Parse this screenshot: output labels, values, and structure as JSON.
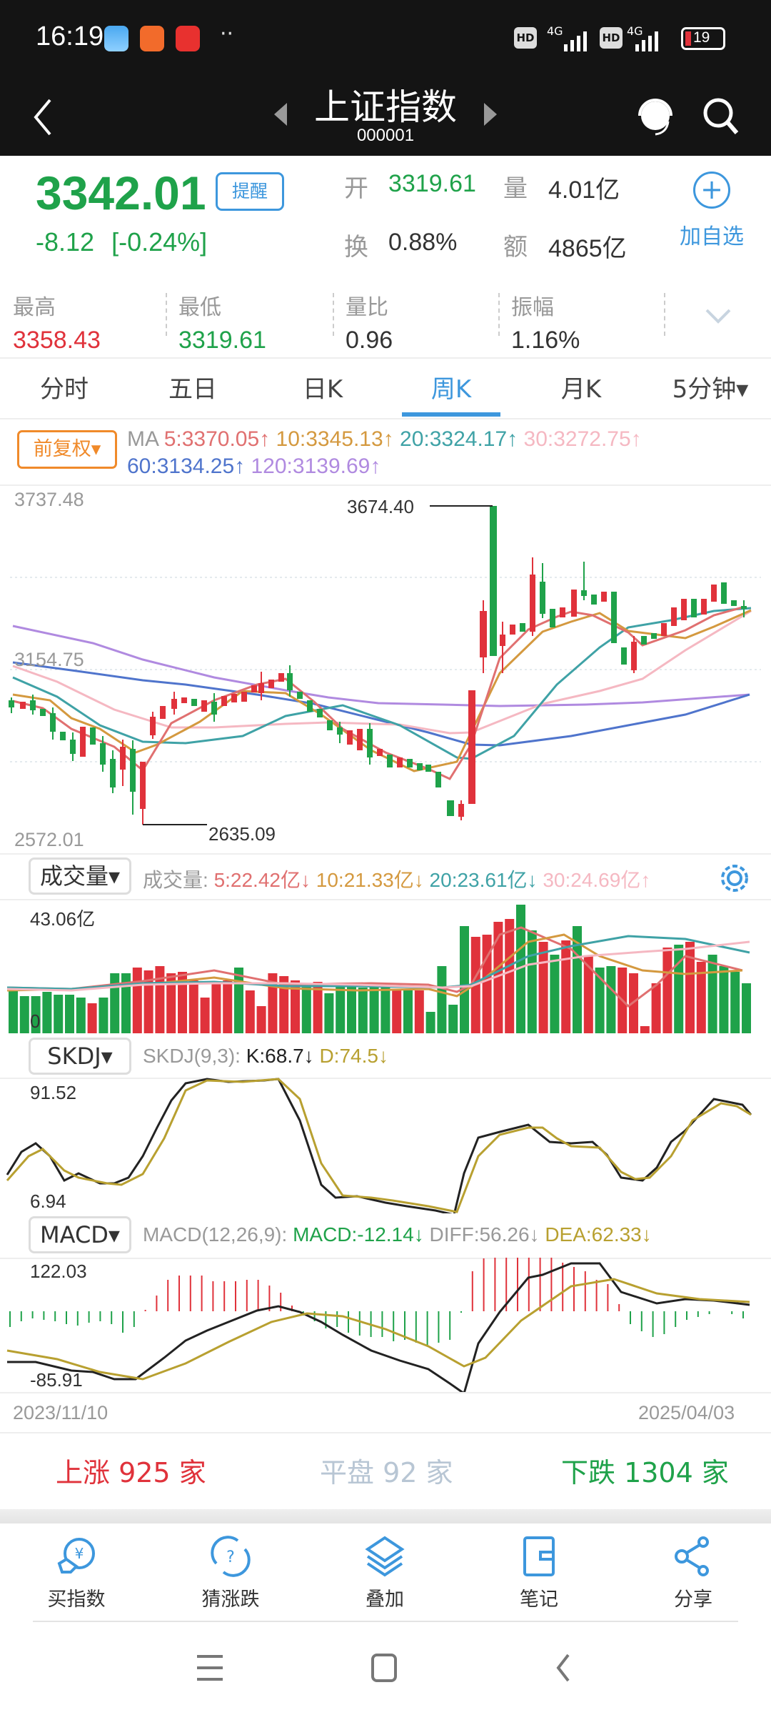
{
  "status_bar": {
    "time": "16:19",
    "battery": "19",
    "network1": "4G",
    "network2": "4G",
    "hd_label": "HD"
  },
  "header": {
    "title": "上证指数",
    "code": "000001"
  },
  "quote": {
    "price": "3342.01",
    "change": "-8.12",
    "change_pct": "[-0.24%]",
    "remind_label": "提醒",
    "open_label": "开",
    "open_value": "3319.61",
    "volume_label": "量",
    "volume_value": "4.01亿",
    "turnover_label": "换",
    "turnover_value": "0.88%",
    "amount_label": "额",
    "amount_value": "4865亿",
    "add_watch_label": "加自选"
  },
  "stats": [
    {
      "label": "最高",
      "value": "3358.43",
      "color": "red"
    },
    {
      "label": "最低",
      "value": "3319.61",
      "color": "green"
    },
    {
      "label": "量比",
      "value": "0.96",
      "color": "dark"
    },
    {
      "label": "振幅",
      "value": "1.16%",
      "color": "dark"
    }
  ],
  "tabs": [
    {
      "label": "分时"
    },
    {
      "label": "五日"
    },
    {
      "label": "日K"
    },
    {
      "label": "周K",
      "active": true
    },
    {
      "label": "月K"
    },
    {
      "label": "5分钟▾"
    }
  ],
  "ma_legend": {
    "adjust_label": "前复权",
    "prefix": "MA",
    "ma5": "5:3370.05↑",
    "ma10": "10:3345.13↑",
    "ma20": "20:3324.17↑",
    "ma30": "30:3272.75↑",
    "ma60": "60:3134.25↑",
    "ma120": "120:3139.69↑"
  },
  "main_chart": {
    "y_top": "3737.48",
    "y_mid": "3154.75",
    "y_bottom": "2572.01",
    "high_marker": "3674.40",
    "low_marker": "2635.09"
  },
  "volume": {
    "button": "成交量",
    "prefix": "成交量:",
    "ma5": "5:22.42亿↓",
    "ma10": "10:21.33亿↓",
    "ma20": "20:23.61亿↓",
    "ma30": "30:24.69亿↑",
    "y_top": "43.06亿",
    "y_bottom": "0"
  },
  "skdj": {
    "button": "SKDJ",
    "prefix": "SKDJ(9,3):",
    "k": "K:68.7↓",
    "d": "D:74.5↓",
    "y_top": "91.52",
    "y_bottom": "6.94"
  },
  "macd": {
    "button": "MACD",
    "prefix": "MACD(12,26,9):",
    "macd": "MACD:-12.14↓",
    "diff": "DIFF:56.26↓",
    "dea": "DEA:62.33↓",
    "y_top": "122.03",
    "y_bottom": "-85.91"
  },
  "dates": {
    "start": "2023/11/10",
    "end": "2025/04/03"
  },
  "breadth": {
    "up": "上涨 925 家",
    "flat": "平盘 92 家",
    "down": "下跌 1304 家"
  },
  "toolbar": [
    {
      "label": "买指数",
      "icon": "buy-index-icon"
    },
    {
      "label": "猜涨跌",
      "icon": "guess-icon"
    },
    {
      "label": "叠加",
      "icon": "layers-icon"
    },
    {
      "label": "笔记",
      "icon": "notebook-icon"
    },
    {
      "label": "分享",
      "icon": "share-icon"
    }
  ],
  "colors": {
    "up": "#e0323b",
    "down": "#1fa24a",
    "accent": "#3d97dd",
    "ma5": "#e07070",
    "ma10": "#d4993f",
    "ma20": "#3fa2a6",
    "ma30": "#f5b8c2",
    "ma60": "#4f74cc",
    "ma120": "#b08ae0",
    "k_line": "#222222",
    "d_line": "#b8a030"
  },
  "chart_data": {
    "type": "candlestick",
    "title": "上证指数 周K",
    "x_range": [
      "2023/11/10",
      "2025/04/03"
    ],
    "ylim": [
      2572.01,
      3737.48
    ],
    "annotations": [
      {
        "label": "3674.40",
        "type": "high"
      },
      {
        "label": "2635.09",
        "type": "low"
      }
    ],
    "moving_averages": {
      "MA5": 3370.05,
      "MA10": 3345.13,
      "MA20": 3324.17,
      "MA30": 3272.75,
      "MA60": 3134.25,
      "MA120": 3139.69
    },
    "volume": {
      "ylim": [
        0,
        43.06
      ],
      "unit": "亿",
      "MA5": 22.42,
      "MA10": 21.33,
      "MA20": 23.61,
      "MA30": 24.69
    },
    "skdj": {
      "ylim": [
        6.94,
        91.52
      ],
      "K": 68.7,
      "D": 74.5
    },
    "macd": {
      "ylim": [
        -85.91,
        122.03
      ],
      "MACD": -12.14,
      "DIFF": 56.26,
      "DEA": 62.33
    }
  }
}
